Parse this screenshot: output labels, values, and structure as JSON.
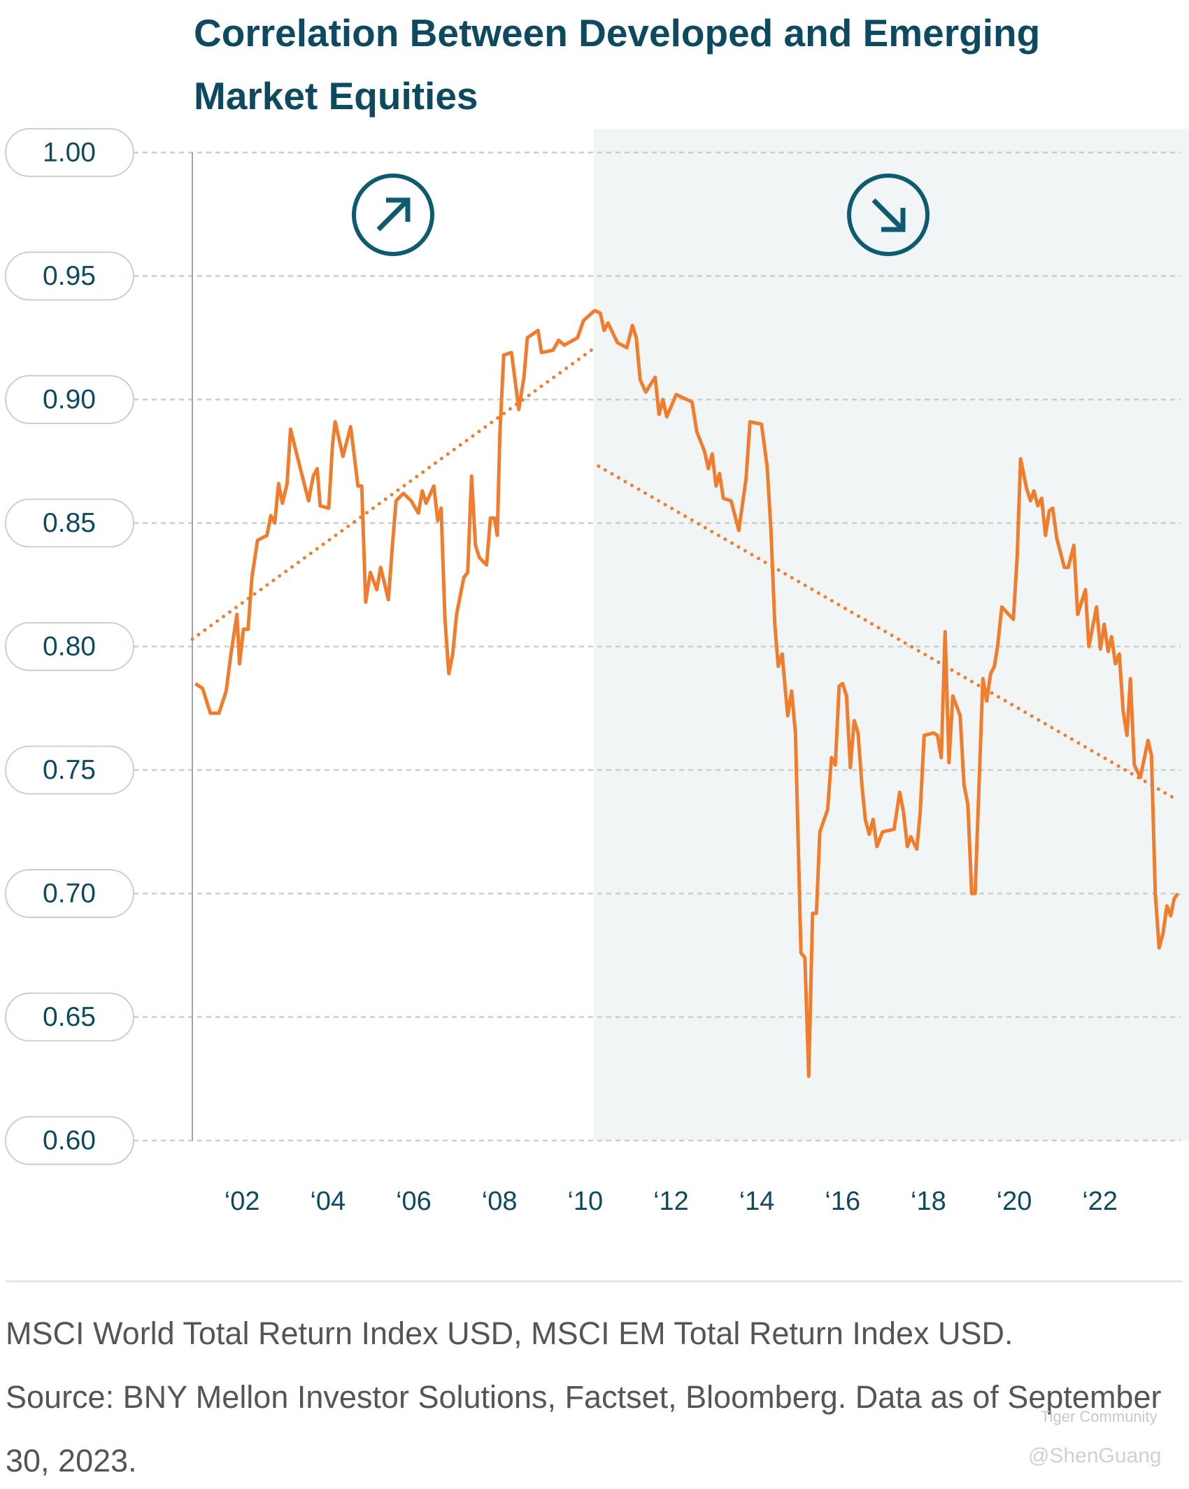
{
  "chart_data": {
    "type": "line",
    "title": "Correlation Between Developed and Emerging Market Equities",
    "color": "#f07d2e",
    "x": [
      2000.91,
      2001.08,
      2001.26,
      2001.46,
      2001.63,
      2001.74,
      2001.88,
      2001.94,
      2002.03,
      2002.14,
      2002.23,
      2002.36,
      2002.58,
      2002.67,
      2002.76,
      2002.85,
      2002.94,
      2003.05,
      2003.13,
      2003.33,
      2003.55,
      2003.66,
      2003.75,
      2003.82,
      2004.02,
      2004.11,
      2004.17,
      2004.26,
      2004.35,
      2004.53,
      2004.61,
      2004.7,
      2004.79,
      2004.88,
      2004.99,
      2005.14,
      2005.23,
      2005.41,
      2005.5,
      2005.59,
      2005.76,
      2005.94,
      2006.11,
      2006.2,
      2006.29,
      2006.47,
      2006.56,
      2006.64,
      2006.73,
      2006.82,
      2006.91,
      2007.0,
      2007.17,
      2007.26,
      2007.35,
      2007.44,
      2007.53,
      2007.7,
      2007.79,
      2007.88,
      2007.95,
      2008.01,
      2008.1,
      2008.28,
      2008.37,
      2008.45,
      2008.57,
      2008.65,
      2008.9,
      2008.98,
      2009.25,
      2009.38,
      2009.51,
      2009.82,
      2009.96,
      2010.22,
      2010.35,
      2010.44,
      2010.53,
      2010.75,
      2010.97,
      2011.1,
      2011.19,
      2011.28,
      2011.41,
      2011.63,
      2011.72,
      2011.81,
      2011.9,
      2012.12,
      2012.49,
      2012.6,
      2012.78,
      2012.87,
      2012.96,
      2013.05,
      2013.13,
      2013.22,
      2013.4,
      2013.58,
      2013.75,
      2013.84,
      2014.11,
      2014.24,
      2014.33,
      2014.42,
      2014.5,
      2014.59,
      2014.72,
      2014.81,
      2014.9,
      2015.03,
      2015.12,
      2015.21,
      2015.3,
      2015.39,
      2015.47,
      2015.65,
      2015.74,
      2015.83,
      2015.92,
      2016.0,
      2016.09,
      2016.18,
      2016.27,
      2016.36,
      2016.45,
      2016.53,
      2016.62,
      2016.71,
      2016.8,
      2016.93,
      2017.2,
      2017.33,
      2017.42,
      2017.51,
      2017.59,
      2017.73,
      2017.81,
      2017.9,
      2018.12,
      2018.21,
      2018.3,
      2018.39,
      2018.48,
      2018.57,
      2018.74,
      2018.83,
      2018.92,
      2019.01,
      2019.09,
      2019.18,
      2019.27,
      2019.36,
      2019.45,
      2019.54,
      2019.62,
      2019.71,
      2019.98,
      2020.07,
      2020.15,
      2020.29,
      2020.38,
      2020.46,
      2020.55,
      2020.64,
      2020.73,
      2020.82,
      2020.9,
      2020.99,
      2021.17,
      2021.26,
      2021.39,
      2021.48,
      2021.66,
      2021.74,
      2021.92,
      2022.01,
      2022.1,
      2022.19,
      2022.27,
      2022.36,
      2022.45,
      2022.54,
      2022.63,
      2022.71,
      2022.8,
      2022.94,
      2023.12,
      2023.2,
      2023.29,
      2023.38,
      2023.47,
      2023.56,
      2023.65,
      2023.73,
      2023.82
    ],
    "values": [
      0.785,
      0.783,
      0.773,
      0.773,
      0.782,
      0.797,
      0.813,
      0.793,
      0.807,
      0.807,
      0.828,
      0.843,
      0.845,
      0.853,
      0.85,
      0.866,
      0.858,
      0.866,
      0.888,
      0.874,
      0.859,
      0.869,
      0.872,
      0.857,
      0.856,
      0.882,
      0.891,
      0.884,
      0.877,
      0.889,
      0.878,
      0.865,
      0.865,
      0.818,
      0.83,
      0.823,
      0.832,
      0.819,
      0.84,
      0.859,
      0.862,
      0.859,
      0.854,
      0.863,
      0.858,
      0.865,
      0.851,
      0.856,
      0.811,
      0.789,
      0.797,
      0.813,
      0.828,
      0.83,
      0.869,
      0.841,
      0.836,
      0.833,
      0.852,
      0.852,
      0.845,
      0.886,
      0.918,
      0.919,
      0.907,
      0.896,
      0.909,
      0.925,
      0.928,
      0.919,
      0.92,
      0.924,
      0.922,
      0.925,
      0.932,
      0.936,
      0.935,
      0.928,
      0.931,
      0.923,
      0.921,
      0.93,
      0.925,
      0.908,
      0.903,
      0.909,
      0.894,
      0.9,
      0.893,
      0.902,
      0.899,
      0.887,
      0.879,
      0.872,
      0.878,
      0.865,
      0.87,
      0.86,
      0.859,
      0.847,
      0.868,
      0.891,
      0.89,
      0.873,
      0.847,
      0.809,
      0.792,
      0.797,
      0.772,
      0.782,
      0.765,
      0.676,
      0.674,
      0.626,
      0.692,
      0.692,
      0.725,
      0.734,
      0.755,
      0.752,
      0.784,
      0.785,
      0.78,
      0.751,
      0.77,
      0.765,
      0.744,
      0.73,
      0.724,
      0.73,
      0.719,
      0.725,
      0.726,
      0.741,
      0.733,
      0.719,
      0.723,
      0.718,
      0.733,
      0.764,
      0.765,
      0.764,
      0.755,
      0.806,
      0.753,
      0.78,
      0.772,
      0.744,
      0.736,
      0.7,
      0.7,
      0.744,
      0.787,
      0.778,
      0.789,
      0.792,
      0.801,
      0.816,
      0.811,
      0.836,
      0.876,
      0.864,
      0.859,
      0.863,
      0.857,
      0.86,
      0.845,
      0.855,
      0.856,
      0.844,
      0.832,
      0.832,
      0.841,
      0.813,
      0.823,
      0.8,
      0.816,
      0.799,
      0.809,
      0.798,
      0.804,
      0.793,
      0.797,
      0.774,
      0.764,
      0.787,
      0.752,
      0.747,
      0.762,
      0.756,
      0.7,
      0.678,
      0.684,
      0.695,
      0.691,
      0.698,
      0.7
    ],
    "trend_lines": [
      {
        "x": [
          2000.84,
          2010.22
        ],
        "values": [
          0.803,
          0.921
        ]
      },
      {
        "x": [
          2010.31,
          2023.79
        ],
        "values": [
          0.873,
          0.738
        ]
      }
    ],
    "highlight_from": 2010.2,
    "xlim": [
      2000.84,
      2023.88
    ],
    "ylim": [
      0.6,
      1.0
    ],
    "xticks": [
      {
        "value": 2002,
        "label": "‘02"
      },
      {
        "value": 2004,
        "label": "‘04"
      },
      {
        "value": 2006,
        "label": "‘06"
      },
      {
        "value": 2008,
        "label": "‘08"
      },
      {
        "value": 2010,
        "label": "‘10"
      },
      {
        "value": 2012,
        "label": "‘12"
      },
      {
        "value": 2014,
        "label": "‘14"
      },
      {
        "value": 2016,
        "label": "‘16"
      },
      {
        "value": 2018,
        "label": "‘18"
      },
      {
        "value": 2020,
        "label": "‘20"
      },
      {
        "value": 2022,
        "label": "‘22"
      }
    ],
    "yticks": [
      {
        "value": 1.0,
        "label": "1.00"
      },
      0.95,
      {
        "value": 0.9,
        "label": "0.90"
      },
      0.85,
      {
        "value": 0.8,
        "label": "0.80"
      },
      0.75,
      {
        "value": 0.7,
        "label": "0.70"
      },
      0.65,
      {
        "value": 0.6,
        "label": "0.60"
      }
    ],
    "grid": true
  },
  "footnote": {
    "note": "MSCI World Total Return Index USD, MSCI EM Total Return Index USD.",
    "source": "Source: BNY Mellon Investor Solutions, Factset, Bloomberg. Data as of September 30, 2023."
  },
  "watermark": {
    "brand": "Tiger Community",
    "user": "@ShenGuang"
  }
}
